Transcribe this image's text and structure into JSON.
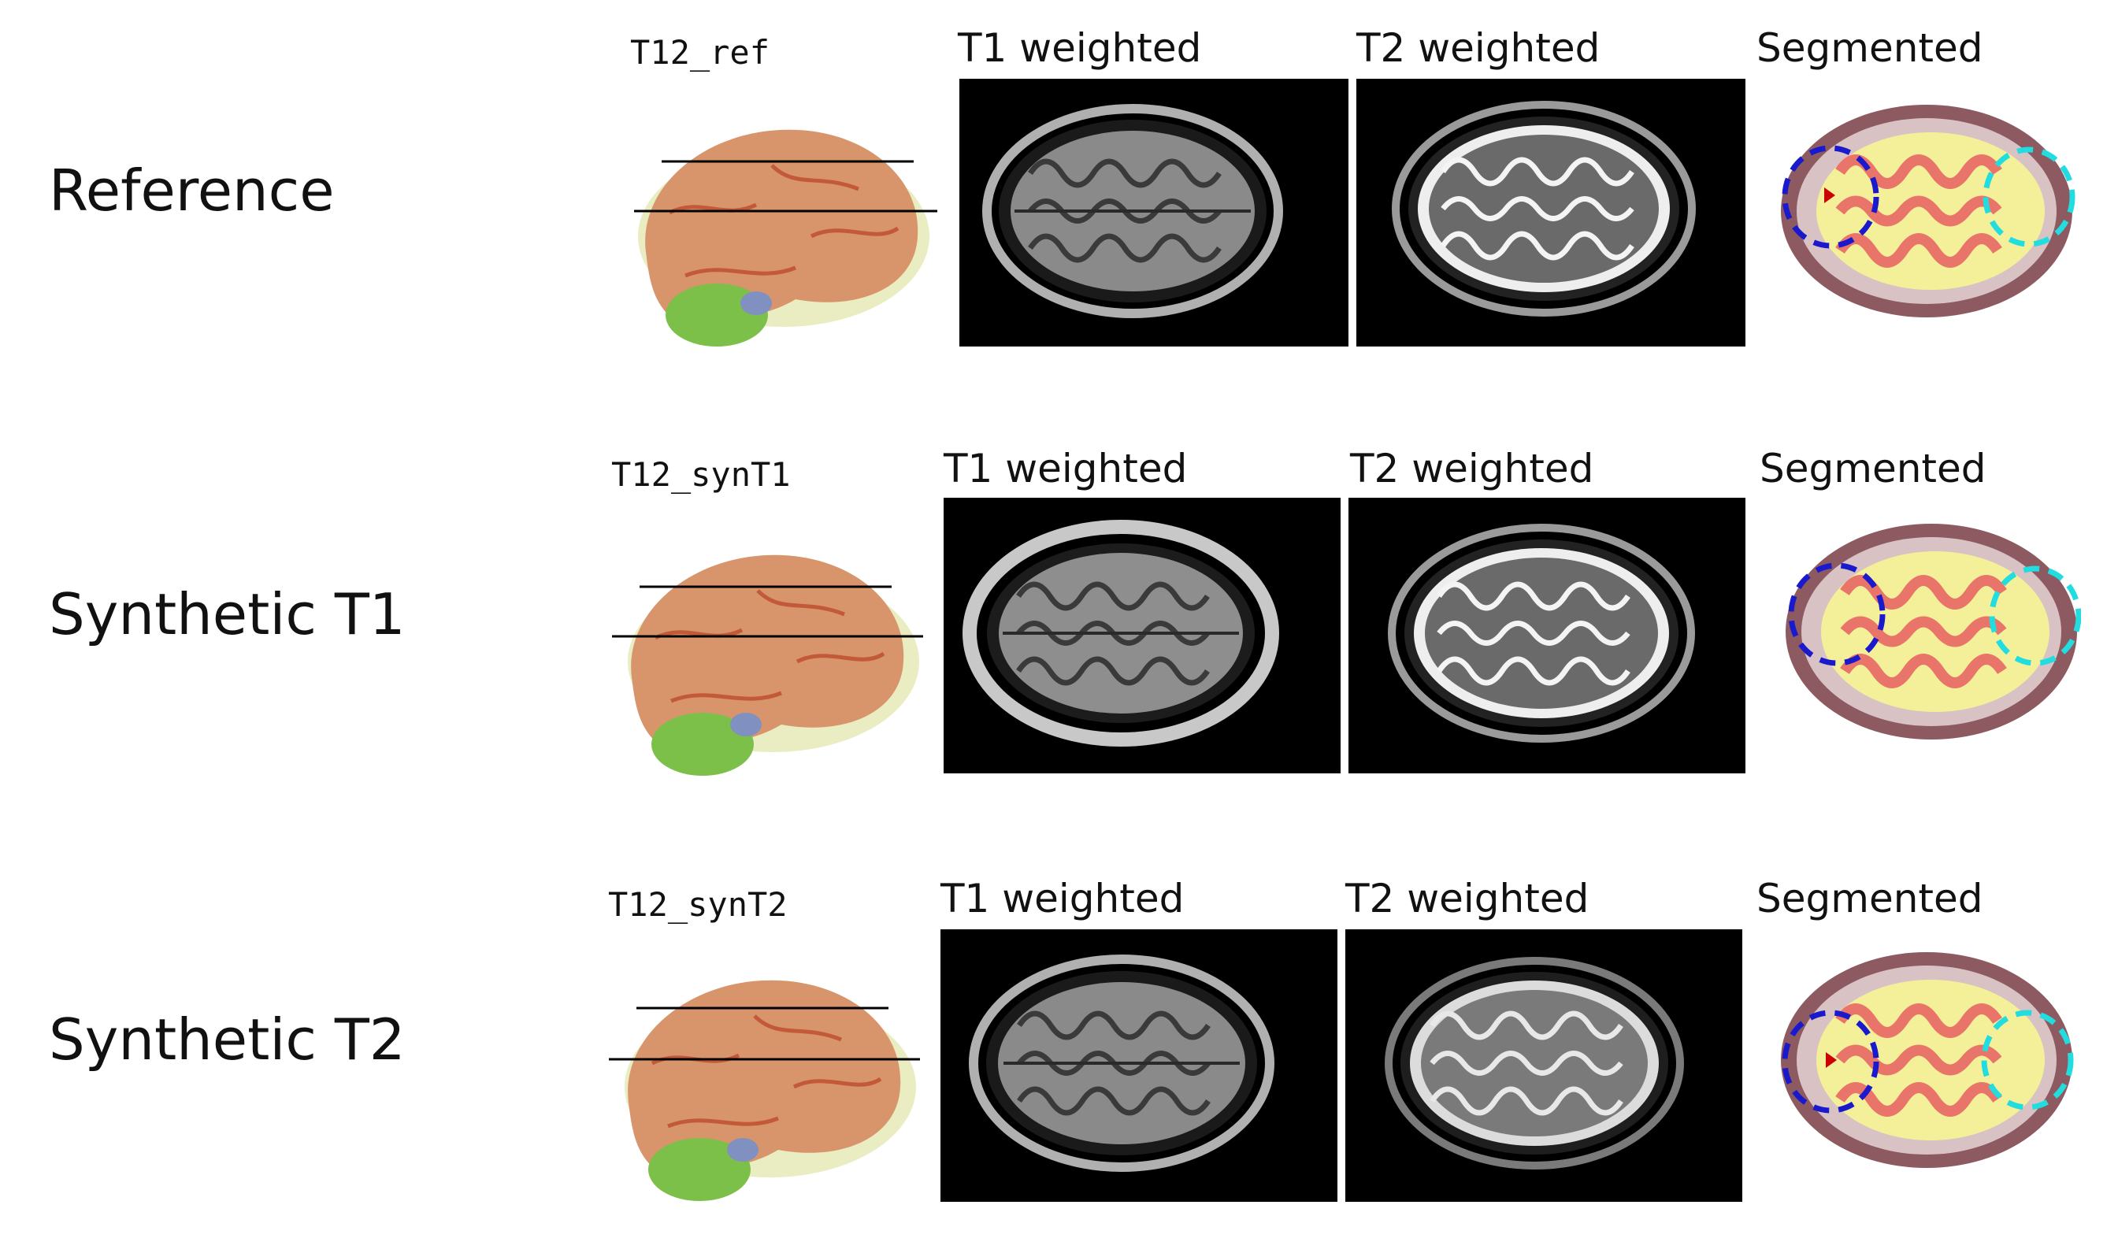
{
  "rows": [
    {
      "label": "Reference",
      "model_id": "T12_ref",
      "t1_header": "T1 weighted",
      "t2_header": "T2 weighted",
      "seg_header": "Segmented"
    },
    {
      "label": "Synthetic T1",
      "model_id": "T12_synT1",
      "t1_header": "T1 weighted",
      "t2_header": "T2 weighted",
      "seg_header": "Segmented"
    },
    {
      "label": "Synthetic T2",
      "model_id": "T12_synT2",
      "t1_header": "T1 weighted",
      "t2_header": "T2 weighted",
      "seg_header": "Segmented"
    }
  ],
  "colors": {
    "brain_surface": "#d8946a",
    "cerebellum": "#7cc04a",
    "seg_wm": "#f4f09a",
    "seg_gm": "#e8746a",
    "seg_skin": "#8c5a60",
    "circle_posterior": "#1a1acc",
    "circle_anterior": "#22dde0"
  }
}
